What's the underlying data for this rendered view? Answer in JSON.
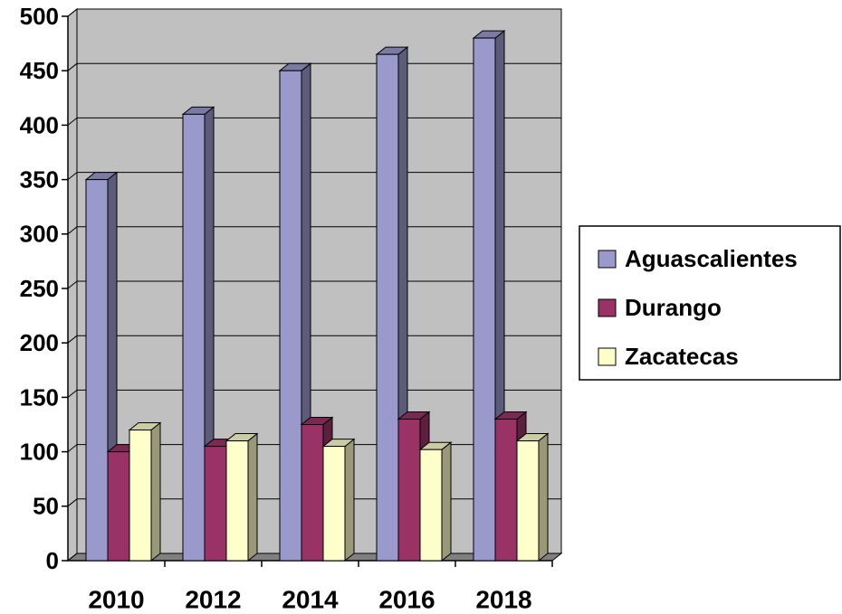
{
  "chart_data": {
    "type": "bar3d",
    "categories": [
      "2010",
      "2012",
      "2014",
      "2016",
      "2018"
    ],
    "series": [
      {
        "name": "Aguascalientes",
        "color": "#9999cc",
        "values": [
          350,
          410,
          450,
          465,
          480
        ]
      },
      {
        "name": "Durango",
        "color": "#993366",
        "values": [
          100,
          105,
          125,
          130,
          130
        ]
      },
      {
        "name": "Zacatecas",
        "color": "#ffffcc",
        "values": [
          120,
          110,
          105,
          102,
          110
        ]
      }
    ],
    "ylim": [
      0,
      500
    ],
    "yticks": [
      0,
      50,
      100,
      150,
      200,
      250,
      300,
      350,
      400,
      450,
      500
    ],
    "grid": true,
    "legend": "right"
  }
}
